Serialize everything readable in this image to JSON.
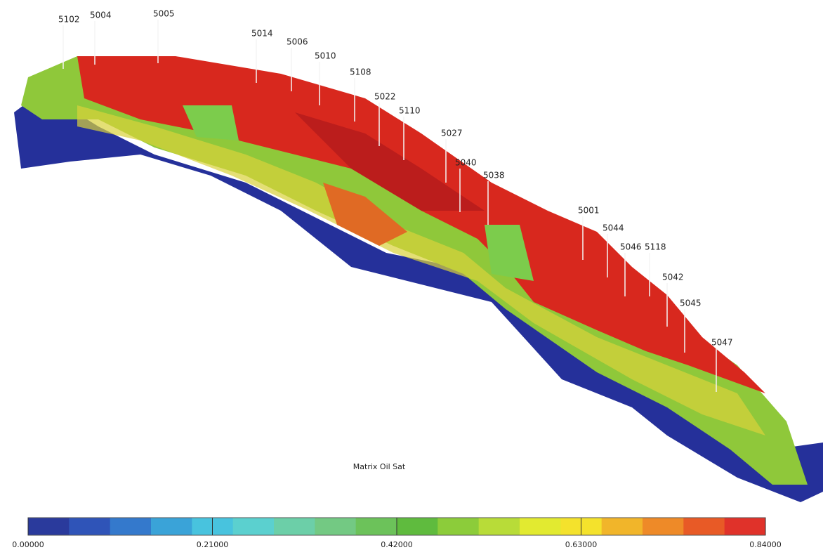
{
  "title": "Matrix Oil Sat",
  "wells": [
    "5102",
    "5004",
    "5005",
    "5014",
    "5006",
    "5010",
    "5108",
    "5022",
    "5110",
    "5027",
    "5040",
    "5038",
    "5001",
    "5044",
    "5046",
    "5118",
    "5042",
    "5045",
    "5047"
  ],
  "colorbar": {
    "lim": [
      0,
      0.84
    ],
    "ticks": [
      {
        "value": 0,
        "label": "0.00000"
      },
      {
        "value": 0.21,
        "label": "0.21000"
      },
      {
        "value": 0.42,
        "label": "0.42000"
      },
      {
        "value": 0.63,
        "label": "0.63000"
      },
      {
        "value": 0.84,
        "label": "0.84000"
      }
    ],
    "colors": [
      "#2a3a9c",
      "#2f54b8",
      "#3479cc",
      "#3aa3d8",
      "#48c3de",
      "#5bd0cf",
      "#6ccfa8",
      "#73c983",
      "#6cc25a",
      "#5fbb3e",
      "#8ccc3a",
      "#b8dc38",
      "#e2ea30",
      "#f4e22c",
      "#f1b52a",
      "#ee8a28",
      "#e85a26",
      "#e0322a"
    ]
  }
}
